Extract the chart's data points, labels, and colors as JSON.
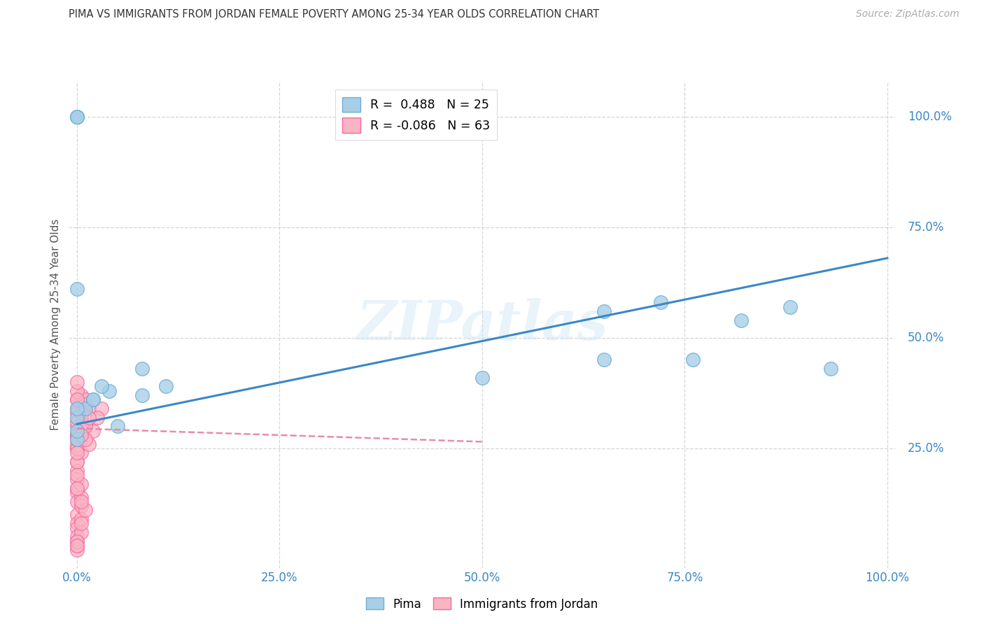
{
  "title": "PIMA VS IMMIGRANTS FROM JORDAN FEMALE POVERTY AMONG 25-34 YEAR OLDS CORRELATION CHART",
  "source": "Source: ZipAtlas.com",
  "ylabel": "Female Poverty Among 25-34 Year Olds",
  "legend_blue_r": "R =  0.488",
  "legend_blue_n": "N = 25",
  "legend_pink_r": "R = -0.086",
  "legend_pink_n": "N = 63",
  "legend_blue_label": "Pima",
  "legend_pink_label": "Immigrants from Jordan",
  "xlim": [
    -0.01,
    1.01
  ],
  "ylim": [
    -0.02,
    1.08
  ],
  "xticks": [
    0.0,
    0.25,
    0.5,
    0.75,
    1.0
  ],
  "xticklabels": [
    "0.0%",
    "25.0%",
    "50.0%",
    "75.0%",
    "100.0%"
  ],
  "yticks_right": [
    0.25,
    0.5,
    0.75,
    1.0
  ],
  "yticklabels_right": [
    "25.0%",
    "50.0%",
    "75.0%",
    "100.0%"
  ],
  "blue_color": "#a8cfe8",
  "blue_edge_color": "#6baed6",
  "pink_color": "#fbb4c3",
  "pink_edge_color": "#f768a1",
  "blue_line_color": "#3a87c8",
  "pink_line_color": "#e87fa0",
  "watermark": "ZIPatlas",
  "blue_scatter_x": [
    0.02,
    0.04,
    0.0,
    0.0,
    0.01,
    0.02,
    0.03,
    0.05,
    0.08,
    0.5,
    0.65,
    0.72,
    0.76,
    0.82,
    0.88,
    0.93,
    0.0,
    0.0,
    0.0,
    0.08,
    0.11,
    0.65,
    0.0,
    0.0,
    0.0
  ],
  "blue_scatter_y": [
    0.36,
    0.38,
    0.32,
    0.27,
    0.34,
    0.36,
    0.39,
    0.3,
    0.37,
    0.41,
    0.56,
    0.58,
    0.45,
    0.54,
    0.57,
    0.43,
    1.0,
    1.0,
    1.0,
    0.43,
    0.39,
    0.45,
    0.61,
    0.34,
    0.29
  ],
  "pink_scatter_x": [
    0.0,
    0.0,
    0.005,
    0.0,
    0.005,
    0.0,
    0.01,
    0.005,
    0.015,
    0.01,
    0.0,
    0.005,
    0.0,
    0.0,
    0.01,
    0.005,
    0.0,
    0.0,
    0.0,
    0.005,
    0.0,
    0.0,
    0.0,
    0.005,
    0.005,
    0.0,
    0.0,
    0.005,
    0.0,
    0.0,
    0.005,
    0.0,
    0.0,
    0.0,
    0.01,
    0.005,
    0.005,
    0.0,
    0.0,
    0.005,
    0.0,
    0.0,
    0.0,
    0.0,
    0.0,
    0.0,
    0.0,
    0.005,
    0.0,
    0.01,
    0.03,
    0.02,
    0.015,
    0.025,
    0.0,
    0.0,
    0.0,
    0.005,
    0.01,
    0.01,
    0.015,
    0.005,
    0.0
  ],
  "pink_scatter_y": [
    0.36,
    0.34,
    0.33,
    0.3,
    0.32,
    0.28,
    0.35,
    0.37,
    0.34,
    0.36,
    0.28,
    0.29,
    0.33,
    0.25,
    0.3,
    0.27,
    0.22,
    0.2,
    0.16,
    0.24,
    0.18,
    0.15,
    0.13,
    0.14,
    0.17,
    0.1,
    0.08,
    0.12,
    0.07,
    0.05,
    0.09,
    0.04,
    0.03,
    0.02,
    0.11,
    0.13,
    0.06,
    0.04,
    0.03,
    0.08,
    0.28,
    0.31,
    0.26,
    0.25,
    0.22,
    0.19,
    0.16,
    0.3,
    0.27,
    0.35,
    0.34,
    0.29,
    0.26,
    0.32,
    0.38,
    0.36,
    0.4,
    0.33,
    0.3,
    0.27,
    0.32,
    0.28,
    0.24
  ],
  "blue_line_x0": 0.0,
  "blue_line_y0": 0.305,
  "blue_line_x1": 1.0,
  "blue_line_y1": 0.68,
  "pink_line_x0": 0.0,
  "pink_line_y0": 0.295,
  "pink_line_x1": 0.5,
  "pink_line_y1": 0.265,
  "grid_color": "#cccccc",
  "grid_style": "--",
  "bg_color": "white"
}
